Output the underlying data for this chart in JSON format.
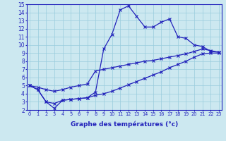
{
  "xlabel": "Graphe des températures (°c)",
  "x": [
    0,
    1,
    2,
    3,
    4,
    5,
    6,
    7,
    8,
    9,
    10,
    11,
    12,
    13,
    14,
    15,
    16,
    17,
    18,
    19,
    20,
    21,
    22,
    23
  ],
  "line_main": [
    5.0,
    4.5,
    3.0,
    2.2,
    3.2,
    3.3,
    3.4,
    3.5,
    4.2,
    9.5,
    11.3,
    14.3,
    14.8,
    13.5,
    12.2,
    12.2,
    12.8,
    13.2,
    11.0,
    10.8,
    10.0,
    9.8,
    9.2,
    9.1
  ],
  "line_upper": [
    5.0,
    4.8,
    4.5,
    4.3,
    4.5,
    4.8,
    5.0,
    5.2,
    6.8,
    7.0,
    7.2,
    7.4,
    7.6,
    7.8,
    8.0,
    8.1,
    8.3,
    8.5,
    8.7,
    8.9,
    9.2,
    9.5,
    9.3,
    9.1
  ],
  "line_lower": [
    5.0,
    4.5,
    3.0,
    2.8,
    3.2,
    3.3,
    3.4,
    3.5,
    3.8,
    4.0,
    4.3,
    4.7,
    5.1,
    5.5,
    5.9,
    6.3,
    6.7,
    7.2,
    7.6,
    8.0,
    8.5,
    8.9,
    9.0,
    9.0
  ],
  "bg_color": "#cce8f0",
  "grid_color": "#99ccdd",
  "line_color": "#2222bb",
  "ylim_min": 2,
  "ylim_max": 15,
  "xlim_min": 0,
  "xlim_max": 23
}
